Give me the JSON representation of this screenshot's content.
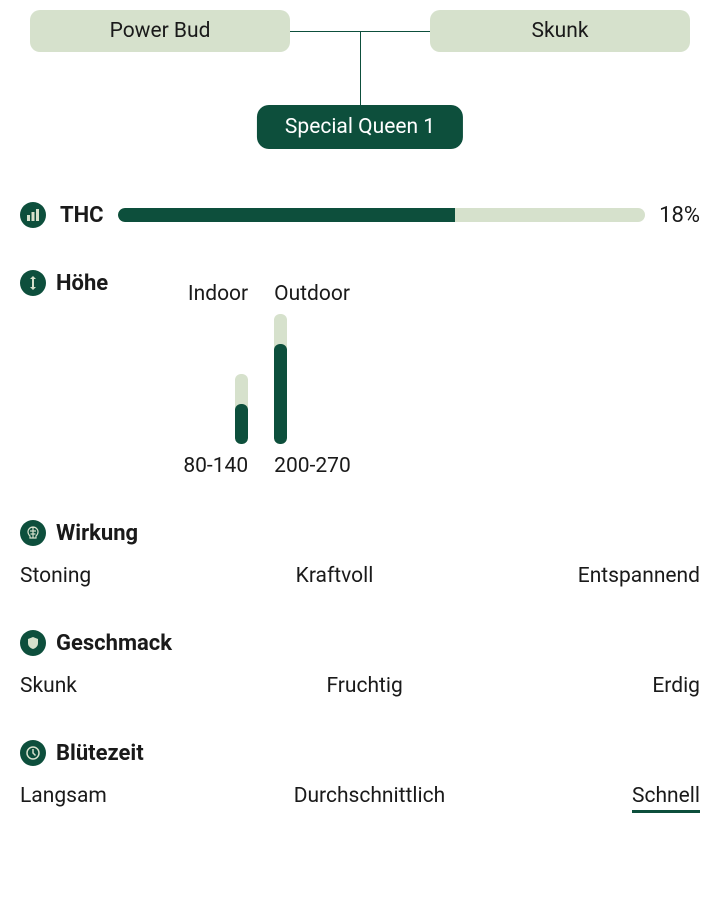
{
  "colors": {
    "primary": "#0d4f3c",
    "light": "#d6e1cc",
    "text": "#1a1a1a",
    "bg": "#ffffff"
  },
  "lineage": {
    "parent_left": "Power Bud",
    "parent_right": "Skunk",
    "child": "Special Queen 1"
  },
  "thc": {
    "title": "THC",
    "value_label": "18%",
    "fill_percent": 64
  },
  "height": {
    "title": "Höhe",
    "columns": [
      {
        "label": "Indoor",
        "range": "80-140",
        "bar_total": 70,
        "bar_fill": 40
      },
      {
        "label": "Outdoor",
        "range": "200-270",
        "bar_total": 130,
        "bar_fill": 100
      }
    ]
  },
  "effect": {
    "title": "Wirkung",
    "tags": [
      "Stoning",
      "Kraftvoll",
      "Entspannend"
    ]
  },
  "taste": {
    "title": "Geschmack",
    "tags": [
      "Skunk",
      "Fruchtig",
      "Erdig"
    ]
  },
  "flowering": {
    "title": "Blütezeit",
    "tags": [
      "Langsam",
      "Durchschnittlich",
      "Schnell"
    ],
    "active_index": 2
  }
}
